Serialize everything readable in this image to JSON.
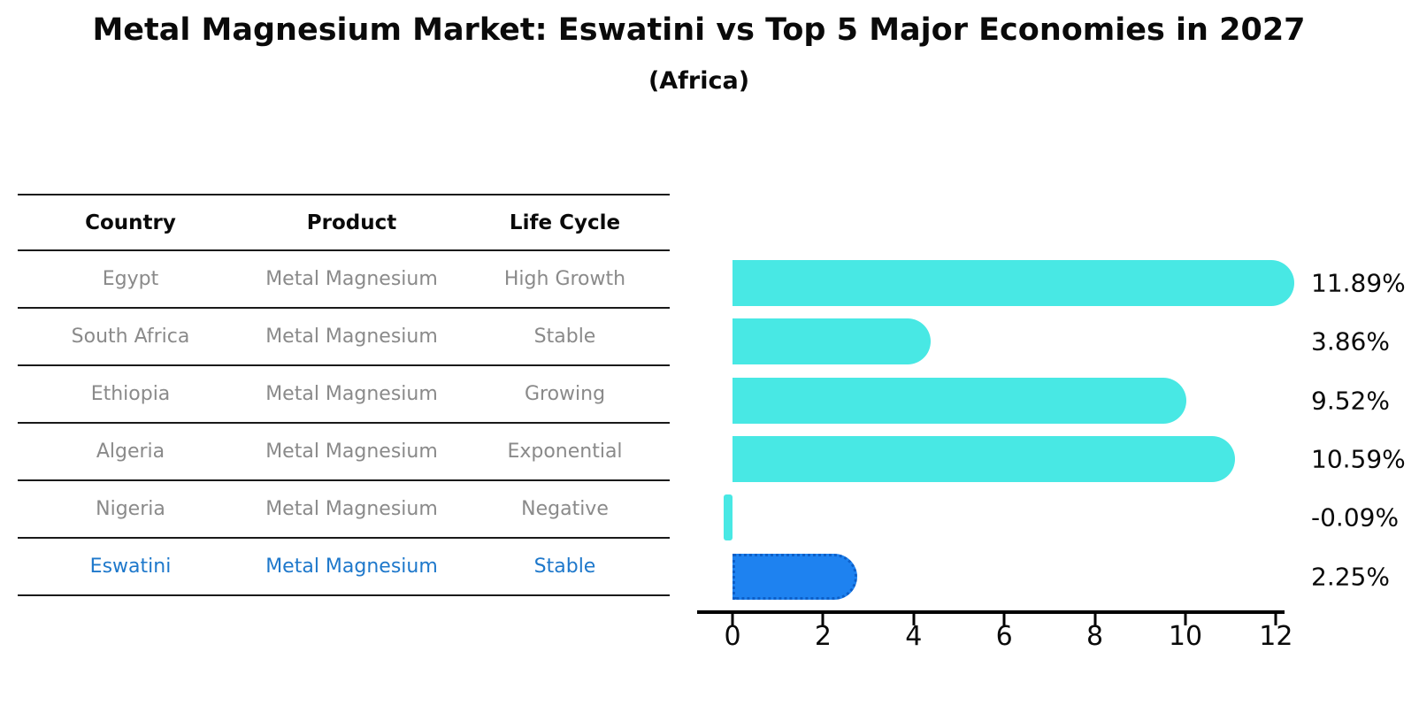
{
  "title": "Metal Magnesium Market: Eswatini vs Top 5 Major Economies in 2027",
  "subtitle": "(Africa)",
  "colors": {
    "bar_default": "#48E8E4",
    "bar_highlight": "#1E82F0",
    "bar_highlight_edge": "#0D5FC8",
    "highlight_text": "#1E78CB",
    "row_text": "#8a8a8a",
    "line": "#1a1a1a"
  },
  "table": {
    "headers": {
      "country": "Country",
      "product": "Product",
      "life_cycle": "Life Cycle"
    },
    "rows": [
      {
        "country": "Egypt",
        "product": "Metal Magnesium",
        "life_cycle": "High Growth",
        "highlight": false
      },
      {
        "country": "South Africa",
        "product": "Metal Magnesium",
        "life_cycle": "Stable",
        "highlight": false
      },
      {
        "country": "Ethiopia",
        "product": "Metal Magnesium",
        "life_cycle": "Growing",
        "highlight": false
      },
      {
        "country": "Algeria",
        "product": "Metal Magnesium",
        "life_cycle": "Exponential",
        "highlight": false
      },
      {
        "country": "Nigeria",
        "product": "Metal Magnesium",
        "life_cycle": "Negative",
        "highlight": false
      },
      {
        "country": "Eswatini",
        "product": "Metal Magnesium",
        "life_cycle": "Stable",
        "highlight": true
      }
    ]
  },
  "chart_data": {
    "type": "bar",
    "orientation": "horizontal",
    "title": "Metal Magnesium Market: Eswatini vs Top 5 Major Economies in 2027",
    "subtitle": "(Africa)",
    "categories": [
      "Egypt",
      "South Africa",
      "Ethiopia",
      "Algeria",
      "Nigeria",
      "Eswatini"
    ],
    "values": [
      11.89,
      3.86,
      9.52,
      10.59,
      -0.09,
      2.25
    ],
    "value_labels": [
      "11.89%",
      "3.86%",
      "9.52%",
      "10.59%",
      "-0.09%",
      "2.25%"
    ],
    "highlight_index": 5,
    "highlight_category": "Eswatini",
    "xlabel": "",
    "ylabel": "",
    "xlim": [
      0,
      12.5
    ],
    "xticks": [
      0,
      2,
      4,
      6,
      8,
      10,
      12
    ],
    "grid": false,
    "legend": false
  }
}
